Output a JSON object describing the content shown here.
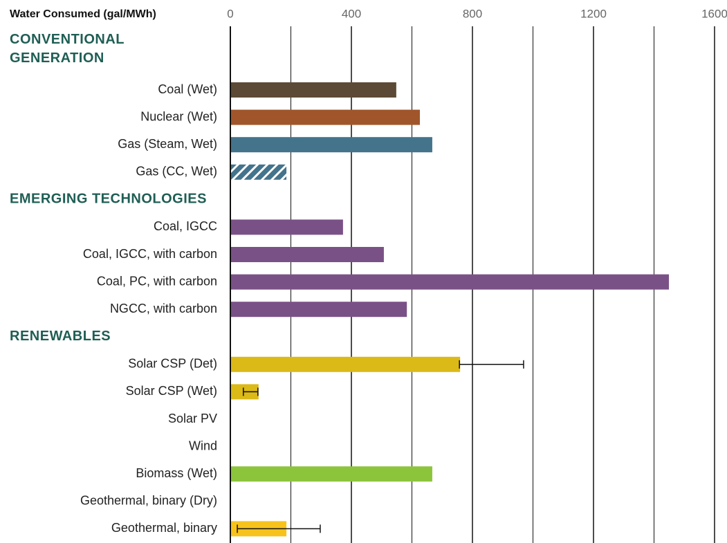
{
  "chart_data": {
    "type": "hbar",
    "title": "Water Consumed (gal/MWh)",
    "xlim": [
      0,
      1600
    ],
    "xticks": [
      0,
      400,
      800,
      1200,
      1600
    ],
    "minor_xticks": [
      200,
      600,
      1000,
      1400
    ],
    "grid": true,
    "groups": [
      {
        "name": "CONVENTIONAL GENERATION",
        "categories": [
          "Coal (Wet)",
          "Nuclear (Wet)",
          "Gas (Steam, Wet)",
          "Gas (CC, Wet)"
        ],
        "values": [
          546,
          624,
          665,
          183
        ],
        "colors": [
          "#5c4a36",
          "#a0562a",
          "#44738c",
          "#44738c"
        ],
        "hatched": [
          false,
          false,
          false,
          true
        ],
        "errors": [
          null,
          null,
          null,
          null
        ]
      },
      {
        "name": "EMERGING TECHNOLOGIES",
        "categories": [
          "Coal, IGCC",
          "Coal, IGCC, with carbon",
          "Coal, PC, with carbon",
          "NGCC, with carbon"
        ],
        "values": [
          370,
          505,
          1447,
          581
        ],
        "colors": [
          "#7a5186",
          "#7a5186",
          "#7a5186",
          "#7a5186"
        ],
        "hatched": [
          false,
          false,
          false,
          false
        ],
        "errors": [
          null,
          null,
          null,
          null
        ]
      },
      {
        "name": "RENEWABLES",
        "categories": [
          "Solar CSP (Det)",
          "Solar CSP (Wet)",
          "Solar PV",
          "Wind",
          "Biomass (Wet)",
          "Geothermal, binary (Dry)",
          "Geothermal, binary"
        ],
        "values": [
          757,
          91,
          null,
          null,
          665,
          null,
          183
        ],
        "colors": [
          "#dbb917",
          "#dbb917",
          "#dbb917",
          "#dbb917",
          "#8cc43c",
          "#f7c21b",
          "#f7c21b"
        ],
        "hatched": [
          false,
          false,
          false,
          false,
          false,
          false,
          false
        ],
        "errors": [
          [
            757,
            969
          ],
          [
            43,
            91
          ],
          null,
          null,
          null,
          null,
          [
            23,
            297
          ]
        ]
      }
    ]
  }
}
